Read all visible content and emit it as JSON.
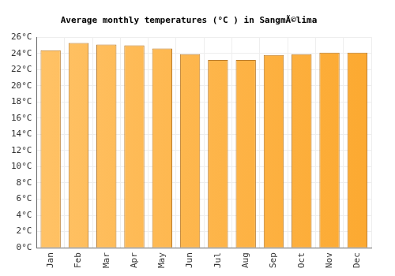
{
  "chart_data": {
    "type": "bar",
    "title": "Average monthly temperatures (°C ) in SangmÃ©lima",
    "categories": [
      "Jan",
      "Feb",
      "Mar",
      "Apr",
      "May",
      "Jun",
      "Jul",
      "Aug",
      "Sep",
      "Oct",
      "Nov",
      "Dec"
    ],
    "values": [
      24.4,
      25.3,
      25.1,
      25.0,
      24.6,
      23.9,
      23.2,
      23.2,
      23.8,
      23.9,
      24.1,
      24.1
    ],
    "color": "#fca930",
    "ylim": [
      0,
      26
    ],
    "yticks": [
      {
        "value": 0,
        "label": "0°C"
      },
      {
        "value": 2,
        "label": "2°C"
      },
      {
        "value": 4,
        "label": "4°C"
      },
      {
        "value": 6,
        "label": "6°C"
      },
      {
        "value": 8,
        "label": "8°C"
      },
      {
        "value": 10,
        "label": "10°C"
      },
      {
        "value": 12,
        "label": "12°C"
      },
      {
        "value": 14,
        "label": "14°C"
      },
      {
        "value": 16,
        "label": "16°C"
      },
      {
        "value": 18,
        "label": "18°C"
      },
      {
        "value": 20,
        "label": "20°C"
      },
      {
        "value": 22,
        "label": "22°C"
      },
      {
        "value": 24,
        "label": "24°C"
      },
      {
        "value": 26,
        "label": "26°C"
      }
    ],
    "grid": true
  }
}
